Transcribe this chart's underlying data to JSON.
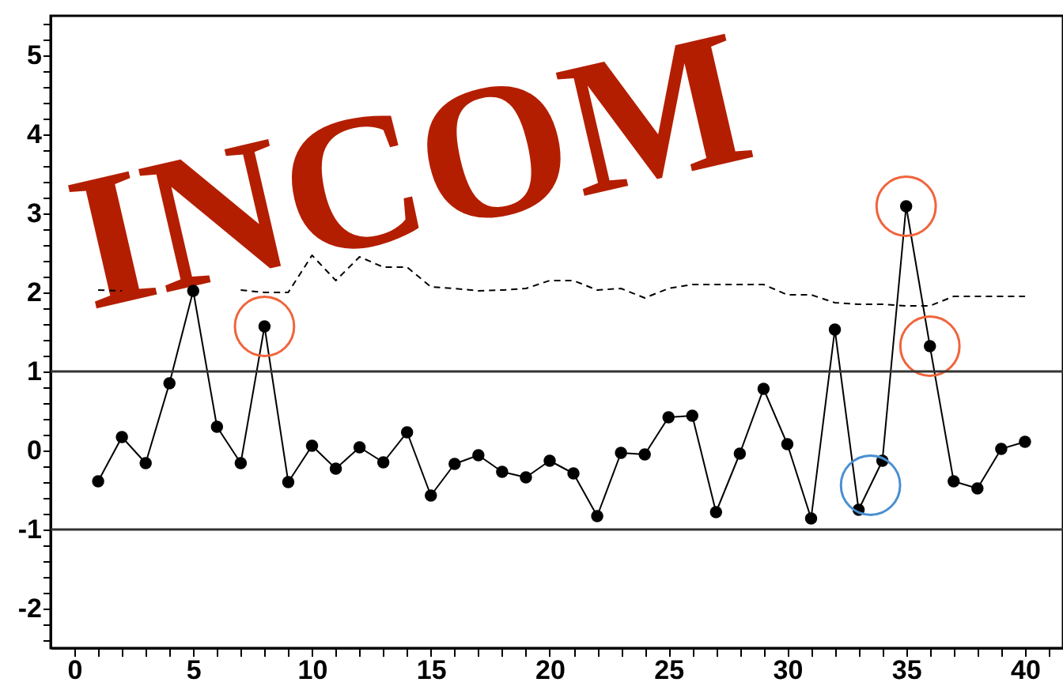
{
  "chart_data": {
    "type": "line",
    "x": [
      1,
      2,
      3,
      4,
      5,
      6,
      7,
      8,
      9,
      10,
      11,
      12,
      13,
      14,
      15,
      16,
      17,
      18,
      19,
      20,
      21,
      22,
      23,
      24,
      25,
      26,
      27,
      28,
      29,
      30,
      31,
      32,
      33,
      34,
      35,
      36,
      37,
      38,
      39,
      40
    ],
    "series": [
      {
        "color": "#000000",
        "marker": "circle",
        "line_style": "solid",
        "values": [
          -0.39,
          0.17,
          -0.16,
          0.85,
          2.02,
          0.3,
          -0.16,
          1.57,
          -0.4,
          0.06,
          -0.23,
          0.04,
          -0.15,
          0.23,
          -0.57,
          -0.17,
          -0.06,
          -0.27,
          -0.34,
          -0.13,
          -0.29,
          -0.83,
          -0.03,
          -0.05,
          0.42,
          0.44,
          -0.78,
          -0.04,
          0.78,
          0.08,
          -0.86,
          1.53,
          -0.75,
          -0.13,
          3.09,
          1.32,
          -0.39,
          -0.48,
          0.02,
          0.11
        ]
      },
      {
        "color": "#000000",
        "marker": "none",
        "line_style": "dashed",
        "values": [
          2.03,
          2.02,
          null,
          null,
          null,
          null,
          2.03,
          2.0,
          2.0,
          2.47,
          2.15,
          2.45,
          2.32,
          2.32,
          2.07,
          2.05,
          2.02,
          2.03,
          2.05,
          2.15,
          2.15,
          2.03,
          2.05,
          1.93,
          2.05,
          2.1,
          2.1,
          2.1,
          2.1,
          1.97,
          1.97,
          1.87,
          1.85,
          1.85,
          1.83,
          1.83,
          1.95,
          1.95,
          1.95,
          1.95
        ]
      },
      {
        "type": "scatter",
        "color": "#f0643c",
        "marker": "circle",
        "x": [
          8,
          35,
          36
        ],
        "values": [
          1.57,
          3.09,
          1.32
        ]
      },
      {
        "type": "scatter",
        "color": "#4a8fd0",
        "marker": "circle",
        "x": [
          33.5
        ],
        "values": [
          -0.44
        ]
      }
    ],
    "xlim": [
      -1,
      41.6
    ],
    "ylim": [
      -2.5,
      5.5
    ],
    "xticks": [
      0,
      {
        "value": 1,
        "label": null
      },
      {
        "value": 2,
        "label": null
      },
      {
        "value": 3,
        "label": null
      },
      {
        "value": 4,
        "label": null
      },
      5,
      {
        "value": 6,
        "label": null
      },
      {
        "value": 7,
        "label": null
      },
      {
        "value": 8,
        "label": null
      },
      {
        "value": 9,
        "label": null
      },
      10,
      {
        "value": 11,
        "label": null
      },
      {
        "value": 12,
        "label": null
      },
      {
        "value": 13,
        "label": null
      },
      {
        "value": 14,
        "label": null
      },
      15,
      {
        "value": 16,
        "label": null
      },
      {
        "value": 17,
        "label": null
      },
      {
        "value": 18,
        "label": null
      },
      {
        "value": 19,
        "label": null
      },
      20,
      {
        "value": 21,
        "label": null
      },
      {
        "value": 22,
        "label": null
      },
      {
        "value": 23,
        "label": null
      },
      {
        "value": 24,
        "label": null
      },
      25,
      {
        "value": 26,
        "label": null
      },
      {
        "value": 27,
        "label": null
      },
      {
        "value": 28,
        "label": null
      },
      {
        "value": 29,
        "label": null
      },
      30,
      {
        "value": 31,
        "label": null
      },
      {
        "value": 32,
        "label": null
      },
      {
        "value": 33,
        "label": null
      },
      {
        "value": 34,
        "label": null
      },
      35,
      {
        "value": 36,
        "label": null
      },
      {
        "value": 37,
        "label": null
      },
      {
        "value": 38,
        "label": null
      },
      {
        "value": 39,
        "label": null
      },
      40,
      {
        "value": 41,
        "label": null
      }
    ],
    "yticks": [
      -2,
      -1,
      0,
      1,
      2,
      3,
      4,
      5,
      {
        "value": -2.4,
        "label": null
      },
      {
        "value": -2.2,
        "label": null
      },
      {
        "value": -1.8,
        "label": null
      },
      {
        "value": -1.6,
        "label": null
      },
      {
        "value": -1.4,
        "label": null
      },
      {
        "value": -1.2,
        "label": null
      },
      {
        "value": -0.8,
        "label": null
      },
      {
        "value": -0.6,
        "label": null
      },
      {
        "value": -0.4,
        "label": null
      },
      {
        "value": -0.2,
        "label": null
      },
      {
        "value": 0.2,
        "label": null
      },
      {
        "value": 0.4,
        "label": null
      },
      {
        "value": 0.6,
        "label": null
      },
      {
        "value": 0.8,
        "label": null
      },
      {
        "value": 1.2,
        "label": null
      },
      {
        "value": 1.4,
        "label": null
      },
      {
        "value": 1.6,
        "label": null
      },
      {
        "value": 1.8,
        "label": null
      },
      {
        "value": 2.2,
        "label": null
      },
      {
        "value": 2.4,
        "label": null
      },
      {
        "value": 2.6,
        "label": null
      },
      {
        "value": 2.8,
        "label": null
      },
      {
        "value": 3.2,
        "label": null
      },
      {
        "value": 3.4,
        "label": null
      },
      {
        "value": 3.6,
        "label": null
      },
      {
        "value": 3.8,
        "label": null
      },
      {
        "value": 4.2,
        "label": null
      },
      {
        "value": 4.4,
        "label": null
      },
      {
        "value": 4.6,
        "label": null
      },
      {
        "value": 4.8,
        "label": null
      },
      {
        "value": 5.2,
        "label": null
      },
      {
        "value": 5.4,
        "label": null
      }
    ],
    "ref_lines": [
      {
        "axis": "y",
        "value": 1,
        "color": "#333333"
      },
      {
        "axis": "y",
        "value": -1,
        "color": "#333333"
      }
    ],
    "grid": false,
    "annotations": [
      "INCOM"
    ]
  }
}
